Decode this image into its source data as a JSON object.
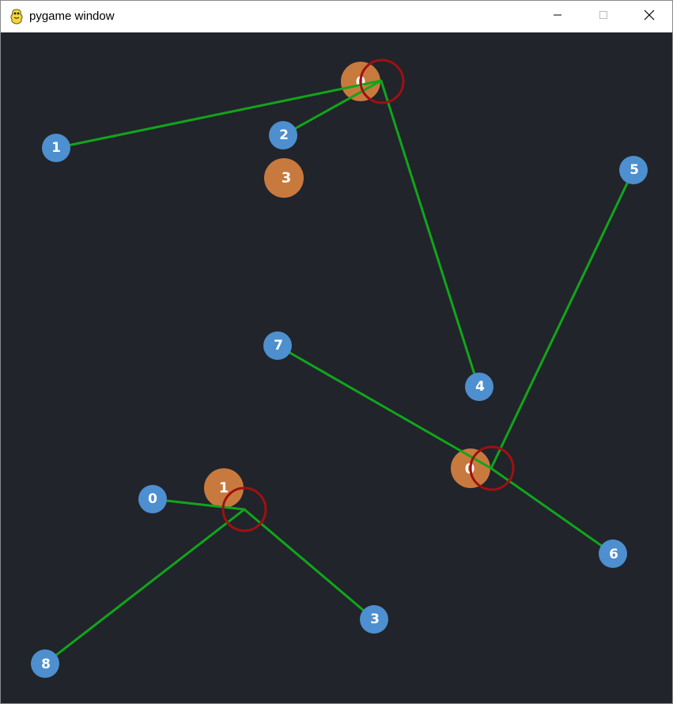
{
  "window": {
    "title": "pygame window",
    "app_icon": "pygame-snake-icon",
    "controls": {
      "minimize": "minimize-icon",
      "maximize": "maximize-icon",
      "close": "close-icon"
    }
  },
  "scene": {
    "background_color": "#21242b",
    "colors": {
      "blue_node": "#4d8fcf",
      "orange_node": "#c87a3e",
      "link": "#11a51a",
      "center_ring": "#a01010",
      "label": "#ffffff"
    },
    "blue_nodes": [
      {
        "label": "1"
      },
      {
        "label": "2"
      },
      {
        "label": "5"
      },
      {
        "label": "7"
      },
      {
        "label": "4"
      },
      {
        "label": "0"
      },
      {
        "label": "6"
      },
      {
        "label": "3"
      },
      {
        "label": "8"
      }
    ],
    "orange_nodes": [
      {
        "label": "0"
      },
      {
        "label": "3"
      },
      {
        "label": "1"
      },
      {
        "label": "0"
      }
    ]
  }
}
